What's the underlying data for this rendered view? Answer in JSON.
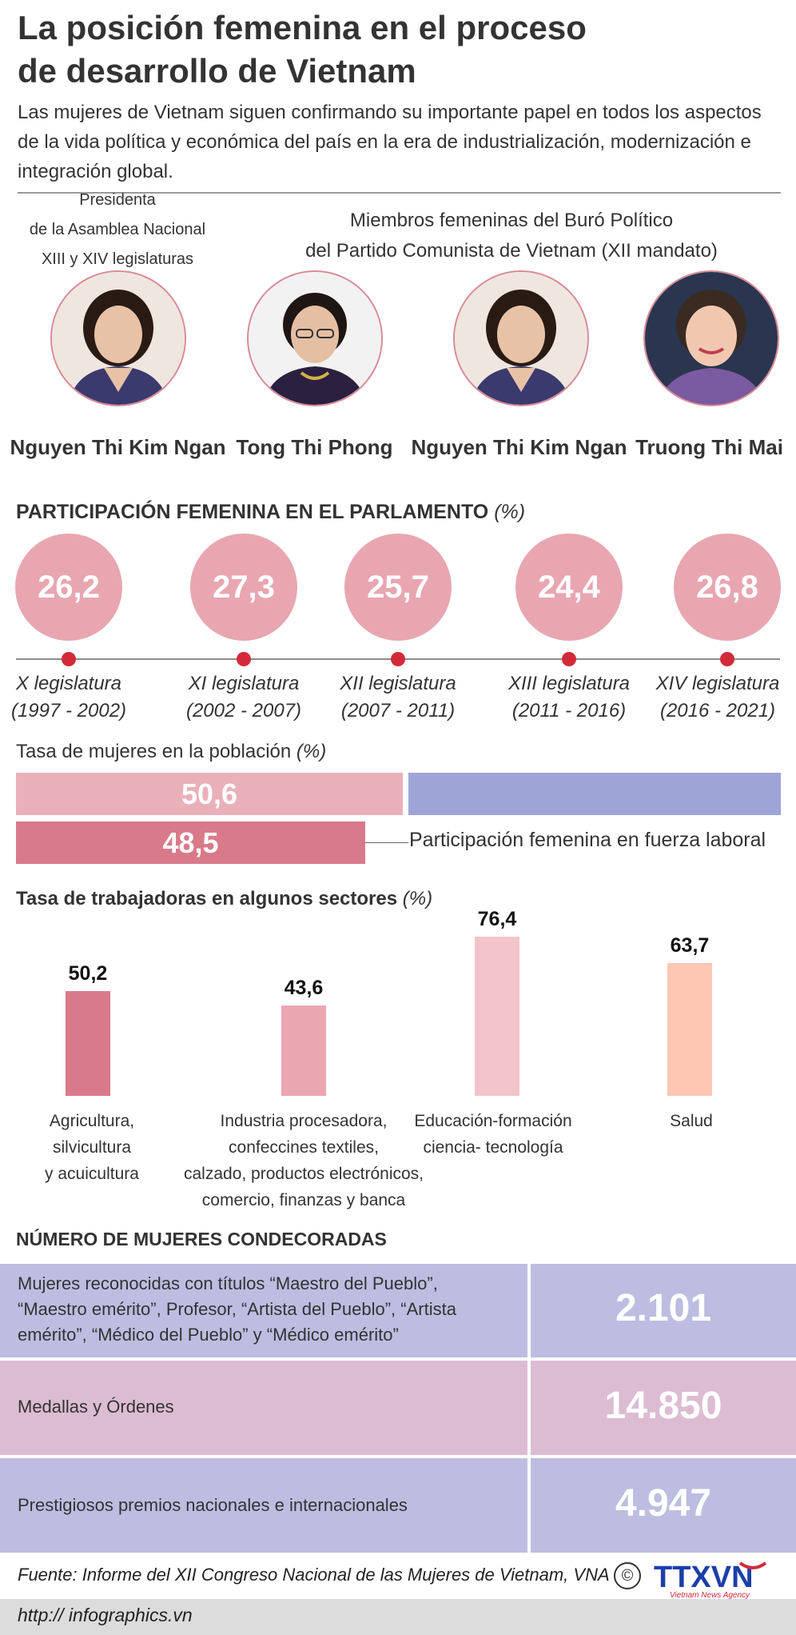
{
  "header": {
    "title_line1": "La posición femenina en el proceso",
    "title_line2": "de desarrollo de Vietnam",
    "subtitle": "Las mujeres de Vietnam siguen confirmando su importante papel en todos los aspectos de la vida política y económica del país en la era de industrialización, modernización e integración global."
  },
  "leaders": {
    "president_label_1": "Presidenta",
    "president_label_2": "de la Asamblea Nacional",
    "president_label_3": "XIII y XIV legislaturas",
    "politburo_label_1": "Miembros femeninas del Buró Político",
    "politburo_label_2": "del Partido Comunista de Vietnam (XII mandato)",
    "people": [
      {
        "name": "Nguyen Thi Kim Ngan"
      },
      {
        "name": "Tong Thi Phong"
      },
      {
        "name": "Nguyen Thi Kim Ngan"
      },
      {
        "name": "Truong Thi Mai"
      }
    ]
  },
  "parliament": {
    "title": "PARTICIPACIÓN FEMENINA EN EL PARLAMENTO",
    "unit": "(%)",
    "items": [
      {
        "value": "26,2",
        "term": "X legislatura",
        "years": "(1997 - 2002)"
      },
      {
        "value": "27,3",
        "term": "XI legislatura",
        "years": "(2002 - 2007)"
      },
      {
        "value": "25,7",
        "term": "XII legislatura",
        "years": "(2007 - 2011)"
      },
      {
        "value": "24,4",
        "term": "XIII legislatura",
        "years": "(2011 - 2016)"
      },
      {
        "value": "26,8",
        "term": "XIV legislatura",
        "years": "(2016 - 2021)"
      }
    ],
    "circle_color": "#e8a6b1",
    "dot_color": "#d32a3a"
  },
  "population": {
    "title": "Tasa de mujeres en la población",
    "unit": "(%)",
    "women_value": "50,6",
    "labor_value": "48,5",
    "labor_label": "Participación femenina en fuerza laboral",
    "women_color": "#eab0b9",
    "rest_color": "#9ea5d6",
    "labor_color": "#d97a8a"
  },
  "chart_data": {
    "type": "bar",
    "title": "Tasa de trabajadoras en algunos sectores",
    "ylabel": "(%)",
    "categories": [
      "Agricultura, silvicultura y acuicultura",
      "Industria procesadora, confeccines textiles, calzado, productos electrónicos, comercio, finanzas y banca",
      "Educación-formación ciencia- tecnología",
      "Salud"
    ],
    "values": [
      50.2,
      43.6,
      76.4,
      63.7
    ],
    "value_labels": [
      "50,2",
      "43,6",
      "76,4",
      "63,7"
    ],
    "colors": [
      "#d97a8a",
      "#eaa7b1",
      "#f2c4ca",
      "#fdc7b4"
    ]
  },
  "sector_labels": [
    [
      "Agricultura,",
      "silvicultura",
      "y acuicultura"
    ],
    [
      "Industria procesadora,",
      "confeccines textiles,",
      "calzado, productos electrónicos,",
      "comercio, finanzas y banca"
    ],
    [
      "Educación-formación",
      "ciencia- tecnología"
    ],
    [
      "Salud"
    ]
  ],
  "honors": {
    "title": "NÚMERO DE MUJERES CONDECORADAS",
    "rows": [
      {
        "line1": "Mujeres reconocidas con títulos “Maestro del Pueblo”,",
        "line2": "“Maestro emérito”, Profesor, “Artista del Pueblo”, “Artista",
        "line3": "emérito”, “Médico del Pueblo” y “Médico emérito”",
        "value": "2.101",
        "color": "#bcbde0"
      },
      {
        "line1": "Medallas y Órdenes",
        "value": "14.850",
        "color": "#dcbcd3"
      },
      {
        "line1": "Prestigiosos premios nacionales e internacionales",
        "value": "4.947",
        "color": "#bcbde0"
      }
    ]
  },
  "footer": {
    "source": "Fuente: Informe del XII Congreso Nacional de las Mujeres de Vietnam, VNA",
    "copyright": "©",
    "logo_text": "TTXVN",
    "logo_sub": "Vietnam News Agency",
    "url": "http:// infographics.vn"
  }
}
